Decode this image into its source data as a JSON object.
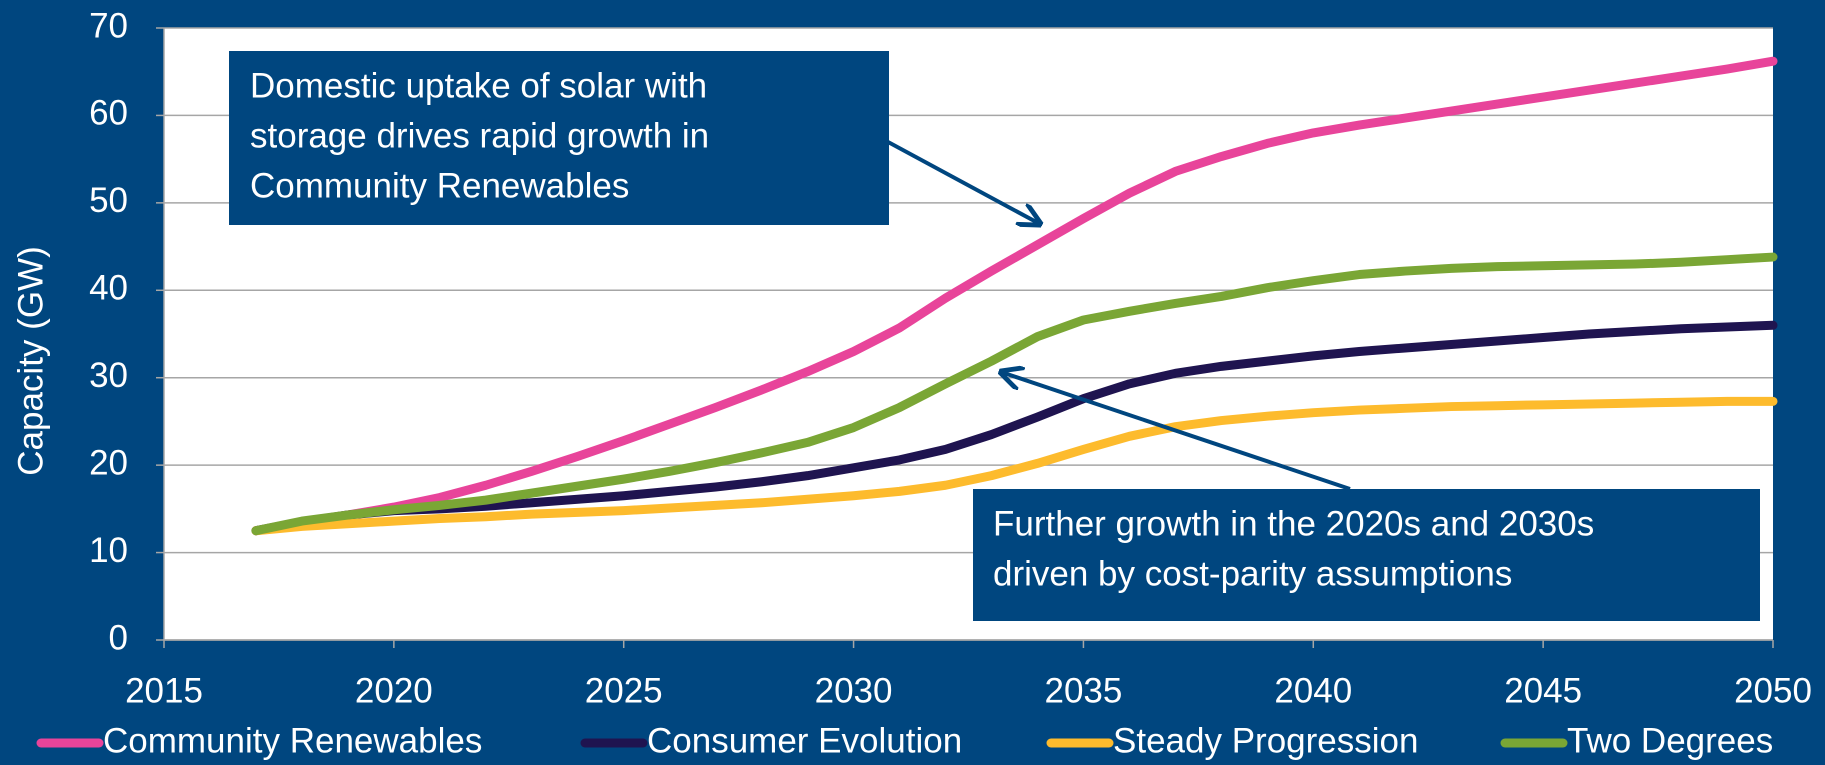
{
  "chart_data": {
    "type": "line",
    "y_label": "Capacity (GW)",
    "x": [
      2017,
      2018,
      2019,
      2020,
      2021,
      2022,
      2023,
      2024,
      2025,
      2026,
      2027,
      2028,
      2029,
      2030,
      2031,
      2032,
      2033,
      2034,
      2035,
      2036,
      2037,
      2038,
      2039,
      2040,
      2041,
      2042,
      2043,
      2044,
      2045,
      2046,
      2047,
      2048,
      2049,
      2050
    ],
    "series": [
      {
        "name": "Community Renewables",
        "color": "#e8449a",
        "values": [
          12.5,
          13.5,
          14.3,
          15.2,
          16.3,
          17.7,
          19.3,
          21,
          22.8,
          24.7,
          26.6,
          28.6,
          30.7,
          33,
          35.7,
          39.1,
          42.2,
          45.2,
          48.2,
          51.1,
          53.6,
          55.3,
          56.8,
          58,
          58.9,
          59.7,
          60.5,
          61.3,
          62.1,
          62.9,
          63.7,
          64.5,
          65.3,
          66.2
        ]
      },
      {
        "name": "Consumer Evolution",
        "color": "#1f1450",
        "values": [
          12.5,
          13.5,
          14.3,
          14.8,
          15.0,
          15.3,
          15.7,
          16.1,
          16.5,
          17.0,
          17.5,
          18.1,
          18.8,
          19.7,
          20.6,
          21.8,
          23.5,
          25.5,
          27.6,
          29.3,
          30.5,
          31.3,
          31.9,
          32.5,
          33.0,
          33.4,
          33.8,
          34.2,
          34.6,
          35.0,
          35.3,
          35.6,
          35.8,
          36.0
        ]
      },
      {
        "name": "Steady Progression",
        "color": "#fdbb2d",
        "values": [
          12.5,
          13.0,
          13.3,
          13.6,
          13.9,
          14.1,
          14.4,
          14.6,
          14.8,
          15.1,
          15.4,
          15.7,
          16.1,
          16.5,
          17.0,
          17.7,
          18.8,
          20.2,
          21.8,
          23.3,
          24.4,
          25.1,
          25.6,
          26.0,
          26.3,
          26.5,
          26.7,
          26.8,
          26.9,
          27.0,
          27.1,
          27.2,
          27.3,
          27.3
        ]
      },
      {
        "name": "Two Degrees",
        "color": "#7aa635",
        "values": [
          12.5,
          13.6,
          14.3,
          14.9,
          15.4,
          16.0,
          16.8,
          17.6,
          18.4,
          19.3,
          20.3,
          21.4,
          22.6,
          24.3,
          26.6,
          29.3,
          31.9,
          34.7,
          36.6,
          37.6,
          38.5,
          39.3,
          40.3,
          41.1,
          41.8,
          42.2,
          42.5,
          42.7,
          42.8,
          42.9,
          43.0,
          43.2,
          43.5,
          43.8
        ]
      }
    ],
    "xlim": [
      2015,
      2050
    ],
    "xticks": [
      2015,
      2020,
      2025,
      2030,
      2035,
      2040,
      2045,
      2050
    ],
    "ylim": [
      0,
      70
    ],
    "yticks": [
      0,
      10,
      20,
      30,
      40,
      50,
      60,
      70
    ],
    "grid": true,
    "legend": "bottom",
    "annotations": [
      {
        "lines": [
          "Domestic uptake of solar with",
          "storage drives rapid growth in",
          "Community Renewables"
        ]
      },
      {
        "lines": [
          "Further growth in the 2020s and 2030s",
          "driven by cost-parity assumptions"
        ]
      }
    ]
  }
}
